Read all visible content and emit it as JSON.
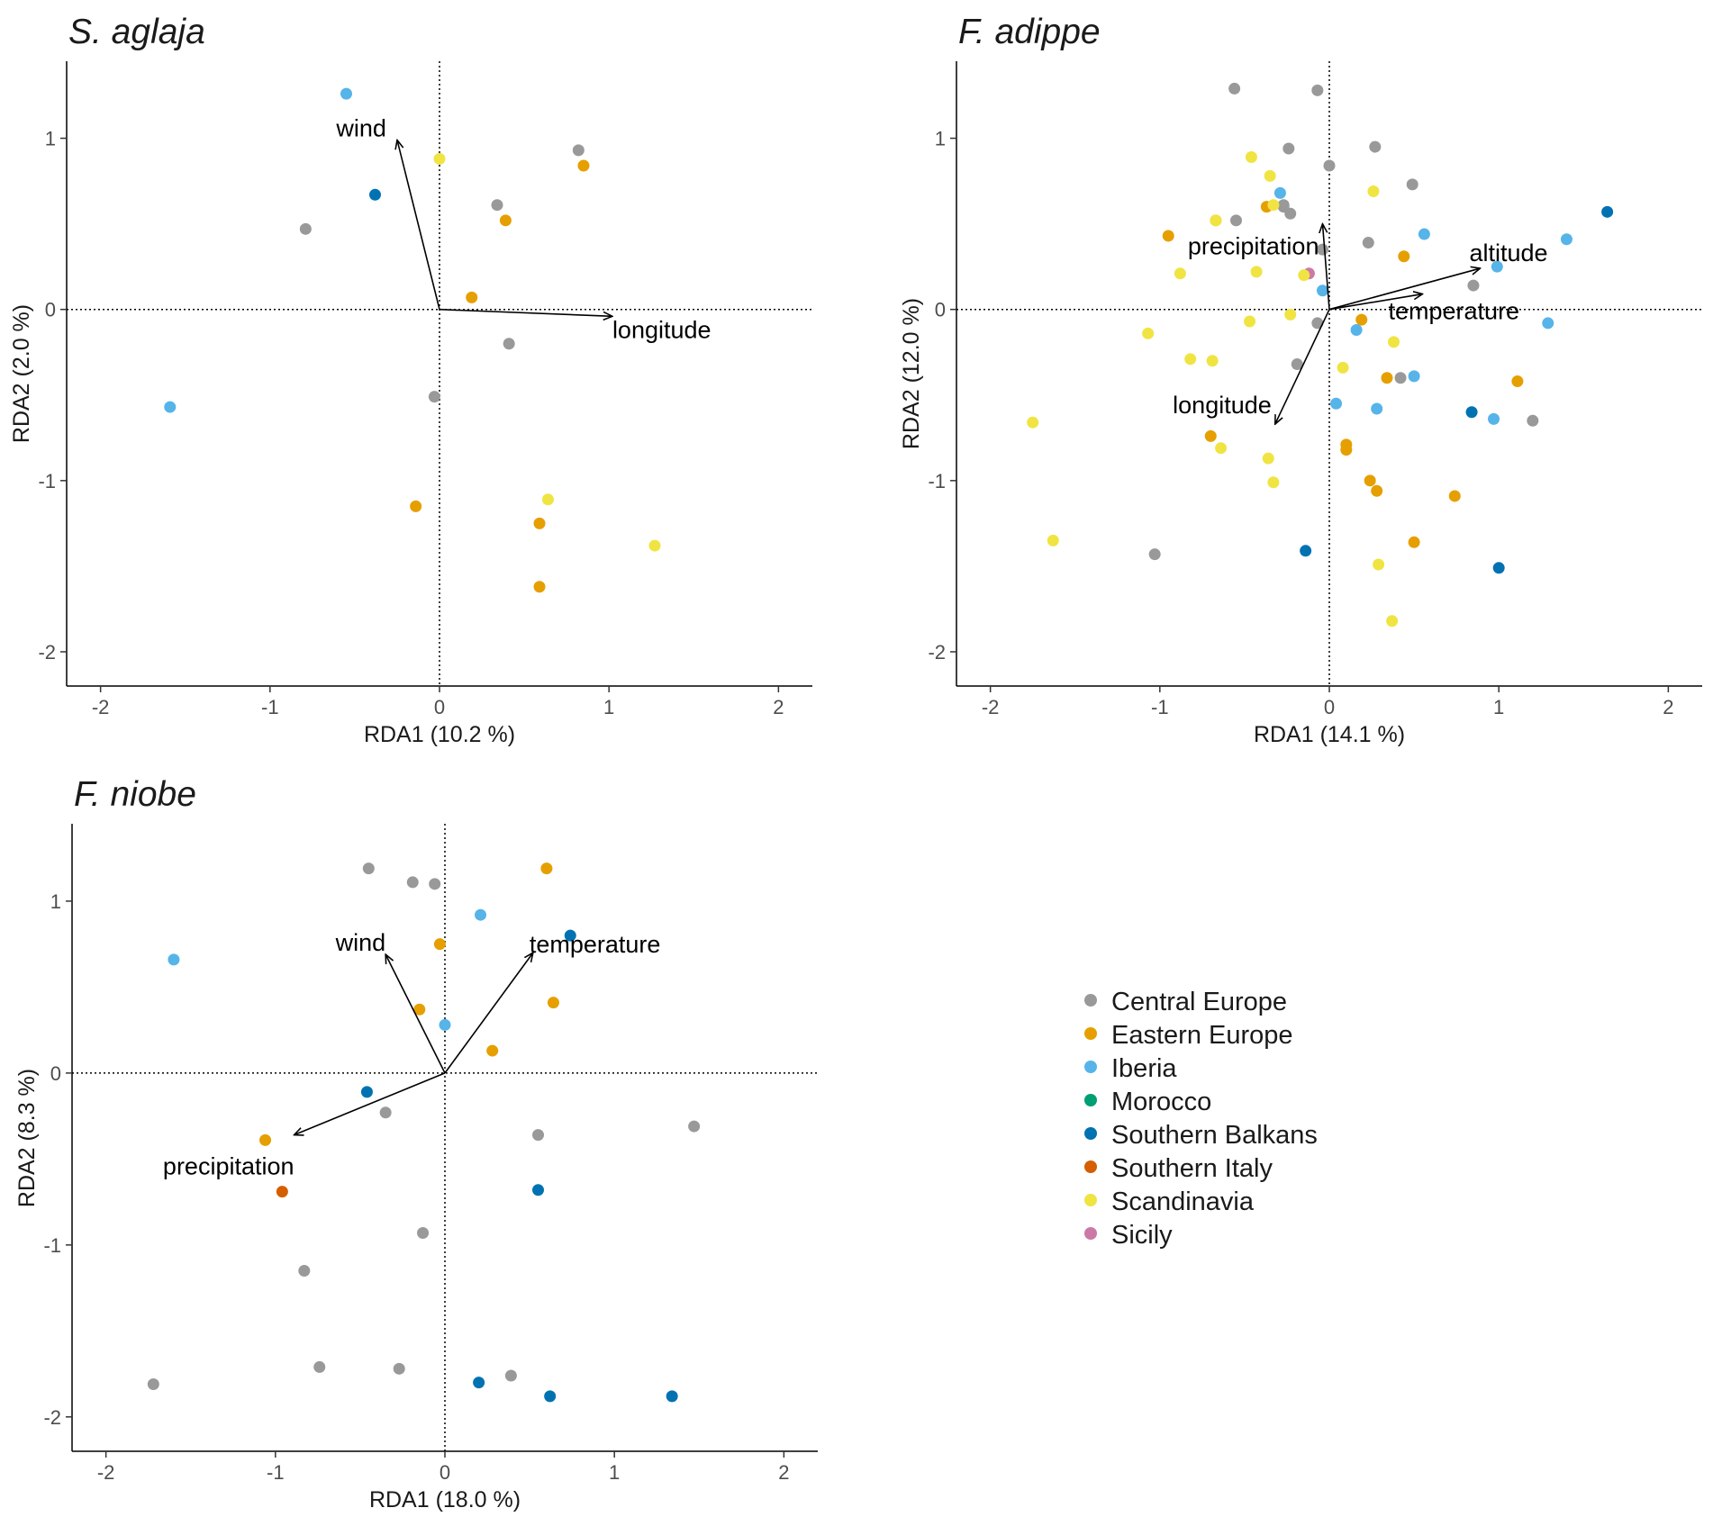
{
  "figure": {
    "legend": [
      {
        "name": "Central Europe",
        "color": "#999999"
      },
      {
        "name": "Eastern Europe",
        "color": "#E69F00"
      },
      {
        "name": "Iberia",
        "color": "#56B4E9"
      },
      {
        "name": "Morocco",
        "color": "#009E73"
      },
      {
        "name": "Southern Balkans",
        "color": "#0072B2"
      },
      {
        "name": "Southern Italy",
        "color": "#D55E00"
      },
      {
        "name": "Scandinavia",
        "color": "#F0E442"
      },
      {
        "name": "Sicily",
        "color": "#CC79A7"
      }
    ]
  },
  "chart_data": [
    {
      "type": "scatter",
      "title": "S. aglaja",
      "xlabel": "RDA1 (10.2 %)",
      "ylabel": "RDA2 (2.0 %)",
      "xlim": [
        -2.2,
        2.2
      ],
      "ylim": [
        -2.2,
        1.45
      ],
      "xticks": [
        -2,
        -1,
        0,
        1,
        2
      ],
      "yticks": [
        -2,
        -1,
        0,
        1
      ],
      "points": [
        {
          "x": -0.55,
          "y": 1.26,
          "group": "Iberia"
        },
        {
          "x": -0.38,
          "y": 0.67,
          "group": "Southern Balkans"
        },
        {
          "x": -0.79,
          "y": 0.47,
          "group": "Central Europe"
        },
        {
          "x": 0.0,
          "y": 0.88,
          "group": "Scandinavia"
        },
        {
          "x": 0.82,
          "y": 0.93,
          "group": "Central Europe"
        },
        {
          "x": 0.85,
          "y": 0.84,
          "group": "Eastern Europe"
        },
        {
          "x": 0.34,
          "y": 0.61,
          "group": "Central Europe"
        },
        {
          "x": 0.39,
          "y": 0.52,
          "group": "Eastern Europe"
        },
        {
          "x": 0.19,
          "y": 0.07,
          "group": "Eastern Europe"
        },
        {
          "x": 0.41,
          "y": -0.2,
          "group": "Central Europe"
        },
        {
          "x": -0.03,
          "y": -0.51,
          "group": "Central Europe"
        },
        {
          "x": -1.59,
          "y": -0.57,
          "group": "Iberia"
        },
        {
          "x": -0.14,
          "y": -1.15,
          "group": "Eastern Europe"
        },
        {
          "x": 0.64,
          "y": -1.11,
          "group": "Scandinavia"
        },
        {
          "x": 0.59,
          "y": -1.25,
          "group": "Eastern Europe"
        },
        {
          "x": 1.27,
          "y": -1.38,
          "group": "Scandinavia"
        },
        {
          "x": 0.59,
          "y": -1.62,
          "group": "Eastern Europe"
        }
      ],
      "vectors": [
        {
          "name": "wind",
          "x": -0.25,
          "y": 0.99
        },
        {
          "name": "longitude",
          "x": 1.02,
          "y": -0.04
        }
      ]
    },
    {
      "type": "scatter",
      "title": "F. adippe",
      "xlabel": "RDA1 (14.1 %)",
      "ylabel": "RDA2 (12.0 %)",
      "xlim": [
        -2.2,
        2.2
      ],
      "ylim": [
        -2.2,
        1.45
      ],
      "xticks": [
        -2,
        -1,
        0,
        1,
        2
      ],
      "yticks": [
        -2,
        -1,
        0,
        1
      ],
      "points": [
        {
          "x": -0.56,
          "y": 1.29,
          "group": "Central Europe"
        },
        {
          "x": -0.07,
          "y": 1.28,
          "group": "Central Europe"
        },
        {
          "x": -0.24,
          "y": 0.94,
          "group": "Central Europe"
        },
        {
          "x": 0.27,
          "y": 0.95,
          "group": "Central Europe"
        },
        {
          "x": 0.0,
          "y": 0.84,
          "group": "Central Europe"
        },
        {
          "x": 0.49,
          "y": 0.73,
          "group": "Central Europe"
        },
        {
          "x": -0.55,
          "y": 0.52,
          "group": "Central Europe"
        },
        {
          "x": -0.27,
          "y": 0.61,
          "group": "Central Europe"
        },
        {
          "x": -0.23,
          "y": 0.56,
          "group": "Central Europe"
        },
        {
          "x": -0.27,
          "y": 0.6,
          "group": "Central Europe"
        },
        {
          "x": 0.23,
          "y": 0.39,
          "group": "Central Europe"
        },
        {
          "x": -0.04,
          "y": 0.35,
          "group": "Central Europe"
        },
        {
          "x": 0.85,
          "y": 0.14,
          "group": "Central Europe"
        },
        {
          "x": -0.07,
          "y": -0.08,
          "group": "Central Europe"
        },
        {
          "x": -0.19,
          "y": -0.32,
          "group": "Central Europe"
        },
        {
          "x": 0.42,
          "y": -0.4,
          "group": "Central Europe"
        },
        {
          "x": 1.2,
          "y": -0.65,
          "group": "Central Europe"
        },
        {
          "x": -1.03,
          "y": -1.43,
          "group": "Central Europe"
        },
        {
          "x": -0.95,
          "y": 0.43,
          "group": "Eastern Europe"
        },
        {
          "x": -0.67,
          "y": 0.52,
          "group": "Eastern Europe"
        },
        {
          "x": -0.37,
          "y": 0.6,
          "group": "Eastern Europe"
        },
        {
          "x": 0.44,
          "y": 0.31,
          "group": "Eastern Europe"
        },
        {
          "x": 0.19,
          "y": -0.06,
          "group": "Eastern Europe"
        },
        {
          "x": 0.34,
          "y": -0.4,
          "group": "Eastern Europe"
        },
        {
          "x": 1.11,
          "y": -0.42,
          "group": "Eastern Europe"
        },
        {
          "x": -0.7,
          "y": -0.74,
          "group": "Eastern Europe"
        },
        {
          "x": 0.1,
          "y": -0.79,
          "group": "Eastern Europe"
        },
        {
          "x": 0.1,
          "y": -0.82,
          "group": "Eastern Europe"
        },
        {
          "x": 0.24,
          "y": -1.0,
          "group": "Eastern Europe"
        },
        {
          "x": 0.28,
          "y": -1.06,
          "group": "Eastern Europe"
        },
        {
          "x": 0.74,
          "y": -1.09,
          "group": "Eastern Europe"
        },
        {
          "x": 0.5,
          "y": -1.36,
          "group": "Eastern Europe"
        },
        {
          "x": -0.29,
          "y": 0.68,
          "group": "Iberia"
        },
        {
          "x": 0.56,
          "y": 0.44,
          "group": "Iberia"
        },
        {
          "x": 1.4,
          "y": 0.41,
          "group": "Iberia"
        },
        {
          "x": 0.99,
          "y": 0.25,
          "group": "Iberia"
        },
        {
          "x": -0.04,
          "y": 0.11,
          "group": "Iberia"
        },
        {
          "x": 0.16,
          "y": -0.12,
          "group": "Iberia"
        },
        {
          "x": 1.29,
          "y": -0.08,
          "group": "Iberia"
        },
        {
          "x": 0.5,
          "y": -0.39,
          "group": "Iberia"
        },
        {
          "x": 0.04,
          "y": -0.55,
          "group": "Iberia"
        },
        {
          "x": 0.28,
          "y": -0.58,
          "group": "Iberia"
        },
        {
          "x": 0.97,
          "y": -0.64,
          "group": "Iberia"
        },
        {
          "x": 1.64,
          "y": 0.57,
          "group": "Southern Balkans"
        },
        {
          "x": 0.84,
          "y": -0.6,
          "group": "Southern Balkans"
        },
        {
          "x": -0.14,
          "y": -1.41,
          "group": "Southern Balkans"
        },
        {
          "x": 1.0,
          "y": -1.51,
          "group": "Southern Balkans"
        },
        {
          "x": -0.12,
          "y": 0.21,
          "group": "Sicily"
        },
        {
          "x": -0.46,
          "y": 0.89,
          "group": "Scandinavia"
        },
        {
          "x": -0.35,
          "y": 0.78,
          "group": "Scandinavia"
        },
        {
          "x": 0.26,
          "y": 0.69,
          "group": "Scandinavia"
        },
        {
          "x": -0.33,
          "y": 0.61,
          "group": "Scandinavia"
        },
        {
          "x": -0.67,
          "y": 0.52,
          "group": "Scandinavia"
        },
        {
          "x": -0.88,
          "y": 0.21,
          "group": "Scandinavia"
        },
        {
          "x": -0.43,
          "y": 0.22,
          "group": "Scandinavia"
        },
        {
          "x": -0.15,
          "y": 0.2,
          "group": "Scandinavia"
        },
        {
          "x": -0.23,
          "y": -0.03,
          "group": "Scandinavia"
        },
        {
          "x": -0.47,
          "y": -0.07,
          "group": "Scandinavia"
        },
        {
          "x": -1.07,
          "y": -0.14,
          "group": "Scandinavia"
        },
        {
          "x": 0.38,
          "y": -0.19,
          "group": "Scandinavia"
        },
        {
          "x": -0.82,
          "y": -0.29,
          "group": "Scandinavia"
        },
        {
          "x": -0.69,
          "y": -0.3,
          "group": "Scandinavia"
        },
        {
          "x": 0.08,
          "y": -0.34,
          "group": "Scandinavia"
        },
        {
          "x": -1.75,
          "y": -0.66,
          "group": "Scandinavia"
        },
        {
          "x": -0.64,
          "y": -0.81,
          "group": "Scandinavia"
        },
        {
          "x": -0.36,
          "y": -0.87,
          "group": "Scandinavia"
        },
        {
          "x": -0.33,
          "y": -1.01,
          "group": "Scandinavia"
        },
        {
          "x": -1.63,
          "y": -1.35,
          "group": "Scandinavia"
        },
        {
          "x": 0.29,
          "y": -1.49,
          "group": "Scandinavia"
        },
        {
          "x": 0.37,
          "y": -1.82,
          "group": "Scandinavia"
        }
      ],
      "vectors": [
        {
          "name": "precipitation",
          "x": -0.04,
          "y": 0.5
        },
        {
          "name": "altitude",
          "x": 0.89,
          "y": 0.24
        },
        {
          "name": "temperature",
          "x": 0.55,
          "y": 0.09
        },
        {
          "name": "longitude",
          "x": -0.32,
          "y": -0.67
        }
      ]
    },
    {
      "type": "scatter",
      "title": "F. niobe",
      "xlabel": "RDA1 (18.0 %)",
      "ylabel": "RDA2 (8.3 %)",
      "xlim": [
        -2.2,
        2.2
      ],
      "ylim": [
        -2.2,
        1.45
      ],
      "xticks": [
        -2,
        -1,
        0,
        1,
        2
      ],
      "yticks": [
        -2,
        -1,
        0,
        1
      ],
      "points": [
        {
          "x": -0.45,
          "y": 1.19,
          "group": "Central Europe"
        },
        {
          "x": -0.19,
          "y": 1.11,
          "group": "Central Europe"
        },
        {
          "x": -0.06,
          "y": 1.1,
          "group": "Central Europe"
        },
        {
          "x": 0.6,
          "y": 1.19,
          "group": "Eastern Europe"
        },
        {
          "x": 0.21,
          "y": 0.92,
          "group": "Iberia"
        },
        {
          "x": 0.74,
          "y": 0.8,
          "group": "Southern Balkans"
        },
        {
          "x": -0.03,
          "y": 0.75,
          "group": "Eastern Europe"
        },
        {
          "x": -1.6,
          "y": 0.66,
          "group": "Iberia"
        },
        {
          "x": 0.64,
          "y": 0.41,
          "group": "Eastern Europe"
        },
        {
          "x": -0.15,
          "y": 0.37,
          "group": "Eastern Europe"
        },
        {
          "x": 0.0,
          "y": 0.28,
          "group": "Iberia"
        },
        {
          "x": 0.28,
          "y": 0.13,
          "group": "Eastern Europe"
        },
        {
          "x": -0.46,
          "y": -0.11,
          "group": "Southern Balkans"
        },
        {
          "x": -0.35,
          "y": -0.23,
          "group": "Central Europe"
        },
        {
          "x": 1.47,
          "y": -0.31,
          "group": "Central Europe"
        },
        {
          "x": 0.55,
          "y": -0.36,
          "group": "Central Europe"
        },
        {
          "x": -1.06,
          "y": -0.39,
          "group": "Eastern Europe"
        },
        {
          "x": 0.55,
          "y": -0.68,
          "group": "Southern Balkans"
        },
        {
          "x": -0.96,
          "y": -0.69,
          "group": "Southern Italy"
        },
        {
          "x": -0.13,
          "y": -0.93,
          "group": "Central Europe"
        },
        {
          "x": -0.83,
          "y": -1.15,
          "group": "Central Europe"
        },
        {
          "x": -0.74,
          "y": -1.71,
          "group": "Central Europe"
        },
        {
          "x": -0.27,
          "y": -1.72,
          "group": "Central Europe"
        },
        {
          "x": 0.39,
          "y": -1.76,
          "group": "Central Europe"
        },
        {
          "x": -1.72,
          "y": -1.81,
          "group": "Central Europe"
        },
        {
          "x": 0.2,
          "y": -1.8,
          "group": "Southern Balkans"
        },
        {
          "x": 0.62,
          "y": -1.88,
          "group": "Southern Balkans"
        },
        {
          "x": 1.34,
          "y": -1.88,
          "group": "Southern Balkans"
        }
      ],
      "vectors": [
        {
          "name": "wind",
          "x": -0.35,
          "y": 0.69
        },
        {
          "name": "temperature",
          "x": 0.52,
          "y": 0.7
        },
        {
          "name": "precipitation",
          "x": -0.89,
          "y": -0.36
        }
      ]
    }
  ]
}
